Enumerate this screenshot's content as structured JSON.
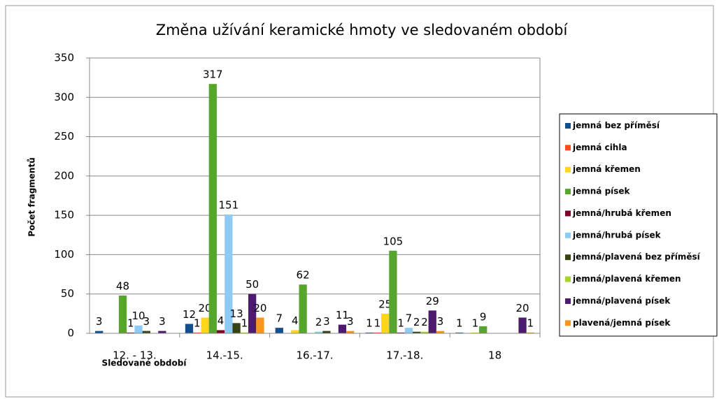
{
  "chart_data": {
    "type": "bar",
    "title": "Změna užívání keramické hmoty ve sledovaném období",
    "x_label": "Sledované období",
    "y_label": "Počet fragmentů",
    "categories": [
      "12. - 13.",
      "14.-15.",
      "16.-17.",
      "17.-18.",
      "18"
    ],
    "series": [
      {
        "name": "jemná bez příměsí",
        "color": "#134f8f",
        "values": [
          3,
          12,
          7,
          1,
          1
        ]
      },
      {
        "name": "jemná cihla",
        "color": "#ff4a1c",
        "values": [
          null,
          1,
          null,
          1,
          null
        ]
      },
      {
        "name": "jemná křemen",
        "color": "#ffd51e",
        "values": [
          null,
          20,
          4,
          25,
          1
        ]
      },
      {
        "name": "jemná písek",
        "color": "#56a52c",
        "values": [
          48,
          317,
          62,
          105,
          9
        ]
      },
      {
        "name": "jemná/hrubá křemen",
        "color": "#7d0025",
        "values": [
          1,
          4,
          null,
          1,
          null
        ]
      },
      {
        "name": "jemná/hrubá písek",
        "color": "#8dcbf5",
        "values": [
          10,
          151,
          2,
          7,
          null
        ]
      },
      {
        "name": "jemná/plavená bez příměsí",
        "color": "#354412",
        "values": [
          3,
          13,
          3,
          2,
          null
        ]
      },
      {
        "name": "jemná/plavená křemen",
        "color": "#a9d22a",
        "values": [
          null,
          1,
          null,
          2,
          null
        ]
      },
      {
        "name": "jemná/plavená písek",
        "color": "#4c1b6f",
        "values": [
          3,
          50,
          11,
          29,
          20
        ]
      },
      {
        "name": "plavená/jemná písek",
        "color": "#f7961d",
        "values": [
          null,
          20,
          3,
          3,
          1
        ]
      }
    ],
    "ylim": [
      0,
      350
    ],
    "yticks": [
      0,
      50,
      100,
      150,
      200,
      250,
      300,
      350
    ],
    "grid": true,
    "legend": "right"
  }
}
